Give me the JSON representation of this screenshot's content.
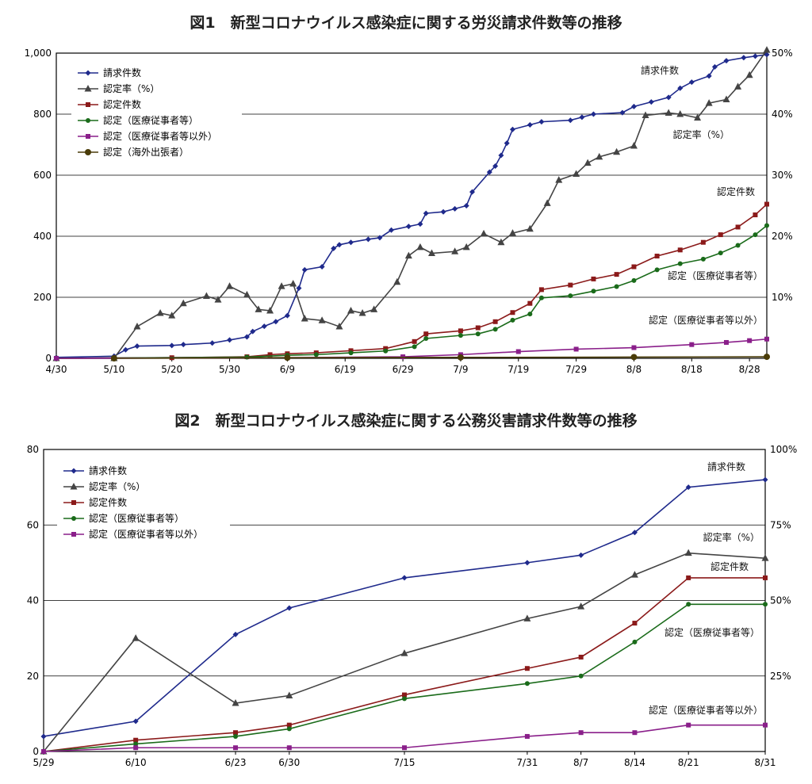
{
  "chart_data": [
    {
      "type": "line",
      "title": "図1　新型コロナウイルス感染症に関する労災請求件数等の推移",
      "x_type": "date",
      "x_ticks": [
        "4/30",
        "5/10",
        "5/20",
        "5/30",
        "6/9",
        "6/19",
        "6/29",
        "7/9",
        "7/19",
        "7/29",
        "8/8",
        "8/18",
        "8/28"
      ],
      "ylim": [
        0,
        1000
      ],
      "y_ticks": [
        "0",
        "200",
        "400",
        "600",
        "800",
        "1,000"
      ],
      "y2lim": [
        0,
        50
      ],
      "y2_ticks": [
        "10%",
        "20%",
        "30%",
        "40%",
        "50%"
      ],
      "grid": true,
      "legend_position": "top-left",
      "series": [
        {
          "name": "請求件数",
          "color": "#1f2a8c",
          "marker": "diamond",
          "axis": "left",
          "points": [
            [
              "4/30",
              3
            ],
            [
              "5/10",
              7
            ],
            [
              "5/12",
              28
            ],
            [
              "5/14",
              40
            ],
            [
              "5/20",
              42
            ],
            [
              "5/22",
              45
            ],
            [
              "5/27",
              50
            ],
            [
              "5/30",
              60
            ],
            [
              "6/2",
              70
            ],
            [
              "6/3",
              88
            ],
            [
              "6/5",
              105
            ],
            [
              "6/7",
              120
            ],
            [
              "6/9",
              140
            ],
            [
              "6/11",
              230
            ],
            [
              "6/12",
              290
            ],
            [
              "6/15",
              300
            ],
            [
              "6/17",
              360
            ],
            [
              "6/18",
              372
            ],
            [
              "6/20",
              380
            ],
            [
              "6/23",
              390
            ],
            [
              "6/25",
              395
            ],
            [
              "6/27",
              420
            ],
            [
              "6/30",
              432
            ],
            [
              "7/2",
              440
            ],
            [
              "7/3",
              475
            ],
            [
              "7/6",
              480
            ],
            [
              "7/8",
              490
            ],
            [
              "7/10",
              500
            ],
            [
              "7/11",
              545
            ],
            [
              "7/14",
              610
            ],
            [
              "7/15",
              630
            ],
            [
              "7/16",
              665
            ],
            [
              "7/17",
              705
            ],
            [
              "7/18",
              750
            ],
            [
              "7/21",
              765
            ],
            [
              "7/23",
              775
            ],
            [
              "7/28",
              780
            ],
            [
              "7/30",
              790
            ],
            [
              "8/1",
              800
            ],
            [
              "8/6",
              805
            ],
            [
              "8/8",
              825
            ],
            [
              "8/11",
              840
            ],
            [
              "8/14",
              855
            ],
            [
              "8/16",
              885
            ],
            [
              "8/18",
              905
            ],
            [
              "8/21",
              925
            ],
            [
              "8/22",
              955
            ],
            [
              "8/24",
              975
            ],
            [
              "8/27",
              985
            ],
            [
              "8/29",
              990
            ],
            [
              "8/31",
              995
            ]
          ],
          "label": "請求件数"
        },
        {
          "name": "認定率（%）",
          "color": "#444444",
          "marker": "triangle",
          "axis": "right",
          "points": [
            [
              "4/30",
              0
            ],
            [
              "5/10",
              0
            ],
            [
              "5/14",
              5.2
            ],
            [
              "5/18",
              7.4
            ],
            [
              "5/20",
              7.0
            ],
            [
              "5/22",
              9.0
            ],
            [
              "5/26",
              10.2
            ],
            [
              "5/28",
              9.6
            ],
            [
              "5/30",
              11.8
            ],
            [
              "6/2",
              10.4
            ],
            [
              "6/4",
              8.0
            ],
            [
              "6/6",
              7.8
            ],
            [
              "6/8",
              11.8
            ],
            [
              "6/10",
              12.2
            ],
            [
              "6/12",
              6.5
            ],
            [
              "6/15",
              6.2
            ],
            [
              "6/18",
              5.2
            ],
            [
              "6/20",
              7.8
            ],
            [
              "6/22",
              7.4
            ],
            [
              "6/24",
              8.0
            ],
            [
              "6/28",
              12.5
            ],
            [
              "6/30",
              16.8
            ],
            [
              "7/2",
              18.2
            ],
            [
              "7/4",
              17.2
            ],
            [
              "7/8",
              17.5
            ],
            [
              "7/10",
              18.2
            ],
            [
              "7/13",
              20.4
            ],
            [
              "7/16",
              19.0
            ],
            [
              "7/18",
              20.5
            ],
            [
              "7/21",
              21.2
            ],
            [
              "7/24",
              25.4
            ],
            [
              "7/26",
              29.2
            ],
            [
              "7/29",
              30.2
            ],
            [
              "7/31",
              32.0
            ],
            [
              "8/2",
              33.0
            ],
            [
              "8/5",
              33.8
            ],
            [
              "8/8",
              34.8
            ],
            [
              "8/10",
              39.8
            ],
            [
              "8/14",
              40.2
            ],
            [
              "8/16",
              40.0
            ],
            [
              "8/19",
              39.4
            ],
            [
              "8/21",
              41.8
            ],
            [
              "8/24",
              42.4
            ],
            [
              "8/26",
              44.5
            ],
            [
              "8/28",
              46.4
            ],
            [
              "8/31",
              50.5
            ]
          ],
          "label": "認定率（%）"
        },
        {
          "name": "認定件数",
          "color": "#8b1a1a",
          "marker": "square",
          "axis": "left",
          "points": [
            [
              "4/30",
              0
            ],
            [
              "5/20",
              2
            ],
            [
              "6/2",
              5
            ],
            [
              "6/6",
              12
            ],
            [
              "6/9",
              15
            ],
            [
              "6/14",
              18
            ],
            [
              "6/20",
              25
            ],
            [
              "6/26",
              32
            ],
            [
              "7/1",
              55
            ],
            [
              "7/3",
              80
            ],
            [
              "7/9",
              90
            ],
            [
              "7/12",
              100
            ],
            [
              "7/15",
              120
            ],
            [
              "7/18",
              150
            ],
            [
              "7/21",
              180
            ],
            [
              "7/23",
              225
            ],
            [
              "7/28",
              240
            ],
            [
              "8/1",
              260
            ],
            [
              "8/5",
              275
            ],
            [
              "8/8",
              300
            ],
            [
              "8/12",
              335
            ],
            [
              "8/16",
              355
            ],
            [
              "8/20",
              380
            ],
            [
              "8/23",
              405
            ],
            [
              "8/26",
              430
            ],
            [
              "8/29",
              470
            ],
            [
              "8/31",
              505
            ]
          ],
          "label": "認定件数"
        },
        {
          "name": "認定（医療従事者等）",
          "color": "#1a6b1a",
          "marker": "dot",
          "axis": "left",
          "points": [
            [
              "4/30",
              0
            ],
            [
              "6/2",
              4
            ],
            [
              "6/9",
              10
            ],
            [
              "6/14",
              12
            ],
            [
              "6/20",
              18
            ],
            [
              "6/26",
              24
            ],
            [
              "7/1",
              38
            ],
            [
              "7/3",
              65
            ],
            [
              "7/9",
              75
            ],
            [
              "7/12",
              80
            ],
            [
              "7/15",
              95
            ],
            [
              "7/18",
              125
            ],
            [
              "7/21",
              145
            ],
            [
              "7/23",
              198
            ],
            [
              "7/28",
              205
            ],
            [
              "8/1",
              220
            ],
            [
              "8/5",
              235
            ],
            [
              "8/8",
              255
            ],
            [
              "8/12",
              290
            ],
            [
              "8/16",
              310
            ],
            [
              "8/20",
              325
            ],
            [
              "8/23",
              345
            ],
            [
              "8/26",
              370
            ],
            [
              "8/29",
              405
            ],
            [
              "8/31",
              435
            ]
          ],
          "label": "認定（医療従事者等）"
        },
        {
          "name": "認定（医療従事者等以外）",
          "color": "#8a1f8a",
          "marker": "square",
          "axis": "left",
          "points": [
            [
              "4/30",
              0
            ],
            [
              "6/9",
              2
            ],
            [
              "6/29",
              5
            ],
            [
              "7/9",
              12
            ],
            [
              "7/19",
              22
            ],
            [
              "7/29",
              30
            ],
            [
              "8/8",
              35
            ],
            [
              "8/18",
              45
            ],
            [
              "8/24",
              52
            ],
            [
              "8/28",
              58
            ],
            [
              "8/31",
              63
            ]
          ],
          "label": "認定（医療従事者等以外）"
        },
        {
          "name": "認定（海外出張者）",
          "color": "#4a3c08",
          "marker": "circle",
          "axis": "left",
          "points": [
            [
              "5/10",
              0
            ],
            [
              "6/9",
              2
            ],
            [
              "7/9",
              3
            ],
            [
              "8/8",
              4
            ],
            [
              "8/31",
              5
            ]
          ]
        }
      ]
    },
    {
      "type": "line",
      "title": "図2　新型コロナウイルス感染症に関する公務災害請求件数等の推移",
      "x_type": "date",
      "x_ticks": [
        "5/29",
        "6/10",
        "6/23",
        "6/30",
        "7/15",
        "7/31",
        "8/7",
        "8/14",
        "8/21",
        "8/31"
      ],
      "ylim": [
        0,
        80
      ],
      "y_ticks": [
        "0",
        "20",
        "40",
        "60",
        "80"
      ],
      "y2lim": [
        0,
        100
      ],
      "y2_ticks": [
        "25%",
        "50%",
        "75%",
        "100%"
      ],
      "grid": true,
      "legend_position": "top-left",
      "series": [
        {
          "name": "請求件数",
          "color": "#1f2a8c",
          "marker": "diamond",
          "axis": "left",
          "points": [
            [
              "5/29",
              4
            ],
            [
              "6/10",
              8
            ],
            [
              "6/23",
              31
            ],
            [
              "6/30",
              38
            ],
            [
              "7/15",
              46
            ],
            [
              "7/31",
              50
            ],
            [
              "8/7",
              52
            ],
            [
              "8/14",
              58
            ],
            [
              "8/21",
              70
            ],
            [
              "8/31",
              72
            ]
          ],
          "label": "請求件数"
        },
        {
          "name": "認定率（%）",
          "color": "#444444",
          "marker": "triangle",
          "axis": "right",
          "points": [
            [
              "5/29",
              0
            ],
            [
              "6/10",
              37.5
            ],
            [
              "6/23",
              16
            ],
            [
              "6/30",
              18.5
            ],
            [
              "7/15",
              32.5
            ],
            [
              "7/31",
              44
            ],
            [
              "8/7",
              48
            ],
            [
              "8/14",
              58.5
            ],
            [
              "8/21",
              65.7
            ],
            [
              "8/31",
              64
            ]
          ],
          "label": "認定率（%）"
        },
        {
          "name": "認定件数",
          "color": "#8b1a1a",
          "marker": "square",
          "axis": "left",
          "points": [
            [
              "5/29",
              0
            ],
            [
              "6/10",
              3
            ],
            [
              "6/23",
              5
            ],
            [
              "6/30",
              7
            ],
            [
              "7/15",
              15
            ],
            [
              "7/31",
              22
            ],
            [
              "8/7",
              25
            ],
            [
              "8/14",
              34
            ],
            [
              "8/21",
              46
            ],
            [
              "8/31",
              46
            ]
          ],
          "label": "認定件数"
        },
        {
          "name": "認定（医療従事者等）",
          "color": "#1a6b1a",
          "marker": "dot",
          "axis": "left",
          "points": [
            [
              "5/29",
              0
            ],
            [
              "6/10",
              2
            ],
            [
              "6/23",
              4
            ],
            [
              "6/30",
              6
            ],
            [
              "7/15",
              14
            ],
            [
              "7/31",
              18
            ],
            [
              "8/7",
              20
            ],
            [
              "8/14",
              29
            ],
            [
              "8/21",
              39
            ],
            [
              "8/31",
              39
            ]
          ],
          "label": "認定（医療従事者等）"
        },
        {
          "name": "認定（医療従事者等以外）",
          "color": "#8a1f8a",
          "marker": "square",
          "axis": "left",
          "points": [
            [
              "5/29",
              0
            ],
            [
              "6/10",
              1
            ],
            [
              "6/23",
              1
            ],
            [
              "6/30",
              1
            ],
            [
              "7/15",
              1
            ],
            [
              "7/31",
              4
            ],
            [
              "8/7",
              5
            ],
            [
              "8/14",
              5
            ],
            [
              "8/21",
              7
            ],
            [
              "8/31",
              7
            ]
          ],
          "label": "認定（医療従事者等以外）"
        }
      ]
    }
  ]
}
